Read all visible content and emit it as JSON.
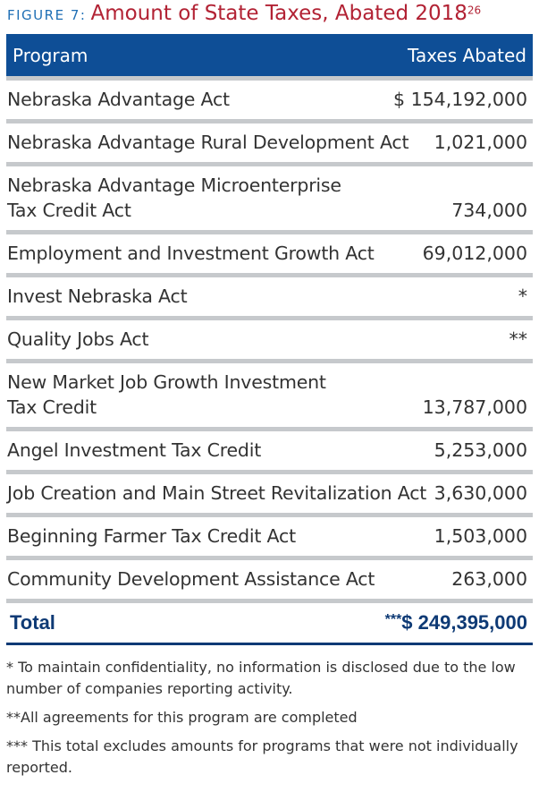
{
  "figure": {
    "label": "FIGURE 7:",
    "title": "Amount of State Taxes, Abated 2018",
    "footnote_ref": "26"
  },
  "table": {
    "headers": {
      "program": "Program",
      "amount": "Taxes Abated"
    },
    "rows": [
      {
        "program": [
          "Nebraska Advantage Act"
        ],
        "amount": "$ 154,192,000"
      },
      {
        "program": [
          "Nebraska Advantage Rural Development Act"
        ],
        "amount": "1,021,000"
      },
      {
        "program": [
          "Nebraska Advantage Microenterprise",
          "Tax Credit Act"
        ],
        "amount": "734,000"
      },
      {
        "program": [
          "Employment and Investment Growth Act"
        ],
        "amount": "69,012,000"
      },
      {
        "program": [
          "Invest Nebraska Act"
        ],
        "amount": "*"
      },
      {
        "program": [
          "Quality Jobs Act"
        ],
        "amount": "**"
      },
      {
        "program": [
          "New Market Job Growth Investment",
          "Tax Credit"
        ],
        "amount": "13,787,000"
      },
      {
        "program": [
          "Angel Investment Tax Credit"
        ],
        "amount": "5,253,000"
      },
      {
        "program": [
          "Job Creation and Main Street Revitalization Act"
        ],
        "amount": "3,630,000"
      },
      {
        "program": [
          "Beginning Farmer Tax Credit Act"
        ],
        "amount": "1,503,000"
      },
      {
        "program": [
          "Community Development Assistance Act"
        ],
        "amount": "263,000"
      }
    ],
    "total": {
      "label": "Total",
      "stars": "***",
      "amount": "$ 249,395,000"
    }
  },
  "footnotes": [
    "* To maintain confidentiality, no information is disclosed due to the low number of companies reporting activity.",
    "**All agreements for this program are completed",
    "*** This total excludes amounts for programs that were not individually reported."
  ],
  "colors": {
    "header_bg": "#0e4e96",
    "title_red": "#b22234",
    "label_blue": "#1f6fb5",
    "total_navy": "#0e3a75",
    "rule_gray": "#c6c9cc"
  }
}
